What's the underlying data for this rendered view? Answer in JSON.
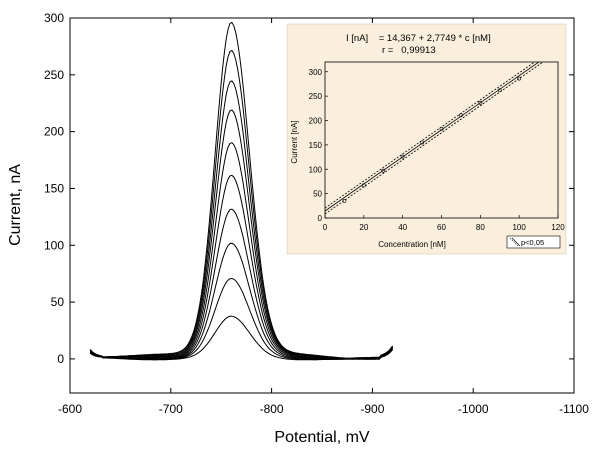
{
  "chart_data": [
    {
      "type": "line",
      "xlabel": "Potential, mV",
      "ylabel": "Current, nA",
      "xlim": [
        -600,
        -1100
      ],
      "ylim": [
        -30,
        300
      ],
      "x_ticks": [
        -600,
        -700,
        -800,
        -900,
        -1000,
        -1100
      ],
      "y_ticks": [
        0,
        50,
        100,
        150,
        200,
        250,
        300
      ],
      "x_tick_labels": [
        "-600",
        "-700",
        "-800",
        "-900",
        "-1000",
        "-1100"
      ],
      "y_tick_labels": [
        "0",
        "50",
        "100",
        "150",
        "200",
        "250",
        "300"
      ],
      "x_range": [
        -620,
        -920
      ],
      "peak_potential": -760,
      "series": [
        {
          "peak": 35
        },
        {
          "peak": 67
        },
        {
          "peak": 97
        },
        {
          "peak": 126
        },
        {
          "peak": 155
        },
        {
          "peak": 183
        },
        {
          "peak": 211
        },
        {
          "peak": 236
        },
        {
          "peak": 262
        },
        {
          "peak": 286
        }
      ],
      "grid": false
    },
    {
      "type": "scatter",
      "equation": "I [nA]    = 14,367 + 2,7749 * c [nM]",
      "r_text": "r =   0,99913",
      "xlabel": "Concentration [nM]",
      "ylabel": "Current [nA]",
      "xlim": [
        0,
        120
      ],
      "ylim": [
        0,
        320
      ],
      "x_ticks": [
        0,
        20,
        40,
        60,
        80,
        100,
        120
      ],
      "y_ticks": [
        0,
        50,
        100,
        150,
        200,
        250,
        300
      ],
      "x_tick_labels": [
        "0",
        "20",
        "40",
        "60",
        "80",
        "100",
        "120"
      ],
      "y_tick_labels": [
        "0",
        "50",
        "100",
        "150",
        "200",
        "250",
        "300"
      ],
      "x": [
        10,
        20,
        30,
        40,
        50,
        60,
        70,
        80,
        90,
        100
      ],
      "y": [
        35,
        67,
        97,
        126,
        155,
        183,
        211,
        236,
        262,
        286
      ],
      "fit": {
        "intercept": 14.367,
        "slope": 2.7749
      },
      "confidence_label": "p<0,05",
      "background": "#f9efdc",
      "grid": false
    }
  ]
}
